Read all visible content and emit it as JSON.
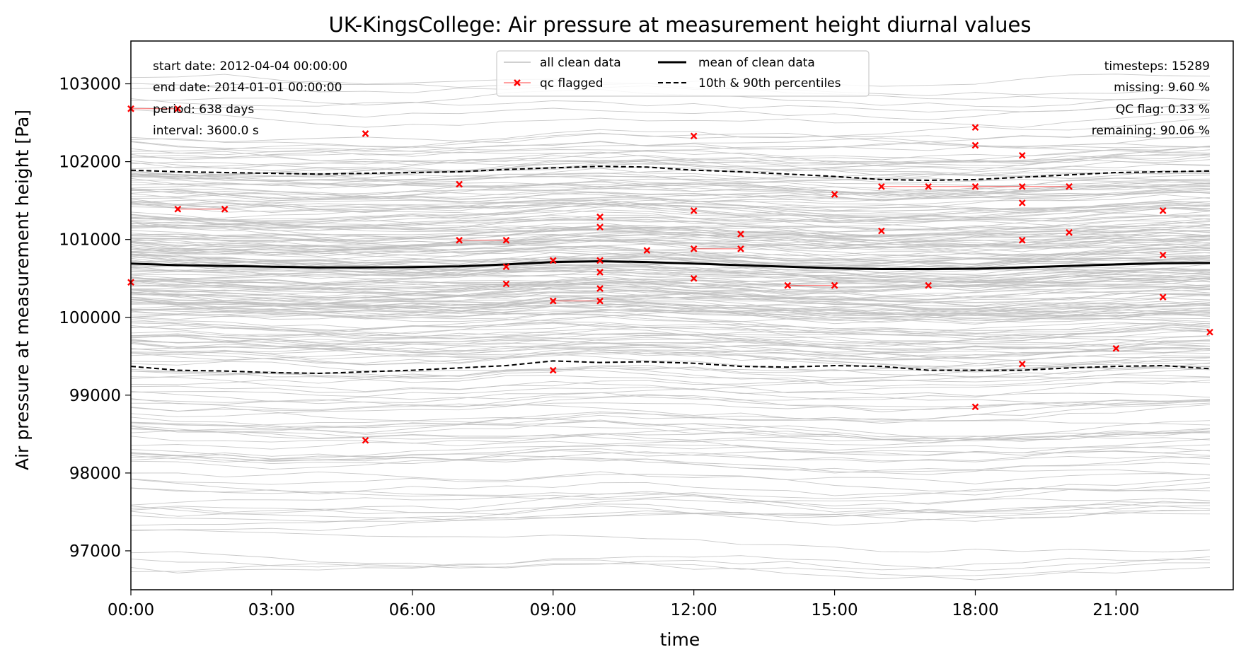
{
  "chart_data": {
    "type": "line",
    "title": "UK-KingsCollege: Air pressure at measurement height diurnal values",
    "xlabel": "time",
    "ylabel": "Air pressure at measurement height [Pa]",
    "xlim": [
      0,
      23
    ],
    "ylim": [
      96500,
      103550
    ],
    "x_ticks": [
      {
        "value": 0,
        "label": "00:00"
      },
      {
        "value": 3,
        "label": "03:00"
      },
      {
        "value": 6,
        "label": "06:00"
      },
      {
        "value": 9,
        "label": "09:00"
      },
      {
        "value": 12,
        "label": "12:00"
      },
      {
        "value": 15,
        "label": "15:00"
      },
      {
        "value": 18,
        "label": "18:00"
      },
      {
        "value": 21,
        "label": "21:00"
      }
    ],
    "y_ticks": [
      {
        "value": 97000,
        "label": "97000"
      },
      {
        "value": 98000,
        "label": "98000"
      },
      {
        "value": 99000,
        "label": "99000"
      },
      {
        "value": 100000,
        "label": "100000"
      },
      {
        "value": 101000,
        "label": "101000"
      },
      {
        "value": 102000,
        "label": "102000"
      },
      {
        "value": 103000,
        "label": "103000"
      }
    ],
    "x": [
      0,
      1,
      2,
      3,
      4,
      5,
      6,
      7,
      8,
      9,
      10,
      11,
      12,
      13,
      14,
      15,
      16,
      17,
      18,
      19,
      20,
      21,
      22,
      23
    ],
    "series": [
      {
        "name": "mean of clean data",
        "style": "solid",
        "values": [
          100690,
          100670,
          100660,
          100650,
          100640,
          100640,
          100645,
          100655,
          100680,
          100710,
          100720,
          100710,
          100690,
          100670,
          100650,
          100630,
          100620,
          100620,
          100625,
          100640,
          100660,
          100680,
          100695,
          100700
        ]
      },
      {
        "name": "10th & 90th percentiles",
        "style": "dashed",
        "values": [
          101890,
          101870,
          101860,
          101850,
          101840,
          101850,
          101860,
          101870,
          101900,
          101920,
          101940,
          101930,
          101890,
          101870,
          101840,
          101810,
          101770,
          101760,
          101770,
          101800,
          101830,
          101860,
          101870,
          101880
        ]
      },
      {
        "name": "10th percentile",
        "style": "dashed",
        "values": [
          99370,
          99320,
          99310,
          99290,
          99280,
          99300,
          99320,
          99350,
          99380,
          99440,
          99420,
          99430,
          99410,
          99370,
          99360,
          99380,
          99370,
          99320,
          99320,
          99320,
          99350,
          99370,
          99380,
          99340
        ]
      }
    ],
    "background_series": {
      "name": "all clean data",
      "color": "#c0c0c0",
      "description_count": 260
    },
    "qc_flagged": {
      "name": "qc flagged",
      "color": "#ff0000",
      "points": [
        [
          0,
          102680
        ],
        [
          1,
          102680
        ],
        [
          0,
          100450
        ],
        [
          1,
          101390
        ],
        [
          2,
          101390
        ],
        [
          5,
          102360
        ],
        [
          5,
          98420
        ],
        [
          7,
          101710
        ],
        [
          7,
          100990
        ],
        [
          8,
          100990
        ],
        [
          8,
          100650
        ],
        [
          8,
          100430
        ],
        [
          9,
          100730
        ],
        [
          9,
          100210
        ],
        [
          9,
          99320
        ],
        [
          10,
          101290
        ],
        [
          10,
          101160
        ],
        [
          10,
          100730
        ],
        [
          10,
          100580
        ],
        [
          10,
          100370
        ],
        [
          10,
          100210
        ],
        [
          11,
          100860
        ],
        [
          12,
          102330
        ],
        [
          12,
          101370
        ],
        [
          12,
          100880
        ],
        [
          12,
          100500
        ],
        [
          13,
          101070
        ],
        [
          13,
          100880
        ],
        [
          14,
          100410
        ],
        [
          15,
          100410
        ],
        [
          15,
          101580
        ],
        [
          16,
          101680
        ],
        [
          16,
          101110
        ],
        [
          17,
          101680
        ],
        [
          17,
          100410
        ],
        [
          18,
          102440
        ],
        [
          18,
          102210
        ],
        [
          18,
          101680
        ],
        [
          18,
          98850
        ],
        [
          19,
          102080
        ],
        [
          19,
          101680
        ],
        [
          19,
          101470
        ],
        [
          19,
          100990
        ],
        [
          19,
          99400
        ],
        [
          20,
          101680
        ],
        [
          20,
          101090
        ],
        [
          21,
          99600
        ],
        [
          22,
          101370
        ],
        [
          22,
          100800
        ],
        [
          22,
          100260
        ],
        [
          23,
          99810
        ]
      ],
      "segments": [
        [
          [
            0,
            102680
          ],
          [
            1,
            102680
          ]
        ],
        [
          [
            1,
            101390
          ],
          [
            2,
            101390
          ]
        ],
        [
          [
            7,
            100990
          ],
          [
            8,
            100990
          ]
        ],
        [
          [
            9,
            100210
          ],
          [
            10,
            100210
          ]
        ],
        [
          [
            12,
            100880
          ],
          [
            13,
            100880
          ]
        ],
        [
          [
            14,
            100410
          ],
          [
            15,
            100410
          ]
        ],
        [
          [
            16,
            101680
          ],
          [
            17,
            101680
          ],
          [
            18,
            101680
          ],
          [
            19,
            101680
          ],
          [
            20,
            101680
          ]
        ]
      ]
    },
    "legend": {
      "placement": "top-center",
      "entries": [
        "all clean data",
        "qc flagged",
        "mean of clean data",
        "10th & 90th percentiles"
      ]
    },
    "annotations_left": [
      "start date: 2012-04-04 00:00:00",
      "end date: 2014-01-01 00:00:00",
      "period: 638 days",
      "interval: 3600.0 s"
    ],
    "annotations_right": [
      "timesteps: 15289",
      "missing: 9.60 %",
      "QC flag: 0.33 %",
      "remaining: 90.06 %"
    ],
    "grid": false
  }
}
